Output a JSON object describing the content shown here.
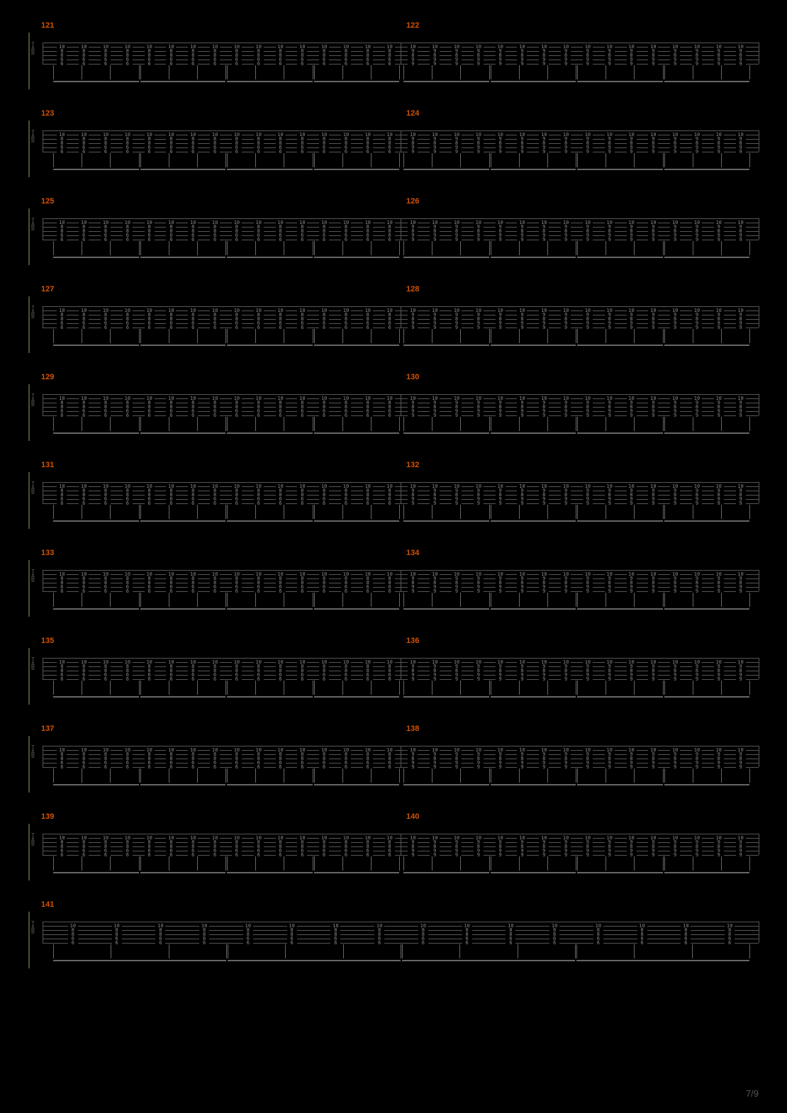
{
  "page_number": "7/9",
  "colors": {
    "background": "#000000",
    "measure_number": "#d35400",
    "staff_line": "#555555",
    "fret_text": "#888888",
    "beam": "#666666",
    "bracket": "#4a5028",
    "page_num": "#555555"
  },
  "tab_label": "TAB",
  "systems": [
    {
      "measures": [
        {
          "number": "121",
          "frets": [
            "10",
            "8",
            "8",
            "6",
            "6"
          ],
          "beats": 16
        },
        {
          "number": "122",
          "frets": [
            "10",
            "9",
            "8",
            "9",
            "9"
          ],
          "beats": 16
        }
      ]
    },
    {
      "measures": [
        {
          "number": "123",
          "frets": [
            "10",
            "8",
            "8",
            "6",
            "6"
          ],
          "beats": 16
        },
        {
          "number": "124",
          "frets": [
            "10",
            "9",
            "8",
            "9",
            "9"
          ],
          "beats": 16
        }
      ]
    },
    {
      "measures": [
        {
          "number": "125",
          "frets": [
            "10",
            "8",
            "8",
            "6",
            "6"
          ],
          "beats": 16
        },
        {
          "number": "126",
          "frets": [
            "10",
            "9",
            "8",
            "9",
            "9"
          ],
          "beats": 16
        }
      ]
    },
    {
      "measures": [
        {
          "number": "127",
          "frets": [
            "10",
            "8",
            "8",
            "6",
            "6"
          ],
          "beats": 16
        },
        {
          "number": "128",
          "frets": [
            "10",
            "9",
            "8",
            "9",
            "9"
          ],
          "beats": 16
        }
      ]
    },
    {
      "measures": [
        {
          "number": "129",
          "frets": [
            "10",
            "8",
            "8",
            "6",
            "6"
          ],
          "beats": 16
        },
        {
          "number": "130",
          "frets": [
            "10",
            "9",
            "8",
            "9",
            "9"
          ],
          "beats": 16
        }
      ]
    },
    {
      "measures": [
        {
          "number": "131",
          "frets": [
            "10",
            "8",
            "8",
            "6",
            "6"
          ],
          "beats": 16
        },
        {
          "number": "132",
          "frets": [
            "10",
            "9",
            "8",
            "9",
            "9"
          ],
          "beats": 16
        }
      ]
    },
    {
      "measures": [
        {
          "number": "133",
          "frets": [
            "10",
            "8",
            "8",
            "6",
            "6"
          ],
          "beats": 16
        },
        {
          "number": "134",
          "frets": [
            "10",
            "9",
            "8",
            "9",
            "9"
          ],
          "beats": 16
        }
      ]
    },
    {
      "measures": [
        {
          "number": "135",
          "frets": [
            "10",
            "8",
            "8",
            "6",
            "6"
          ],
          "beats": 16
        },
        {
          "number": "136",
          "frets": [
            "10",
            "9",
            "8",
            "9",
            "9"
          ],
          "beats": 16
        }
      ]
    },
    {
      "measures": [
        {
          "number": "137",
          "frets": [
            "10",
            "8",
            "8",
            "6",
            "6"
          ],
          "beats": 16
        },
        {
          "number": "138",
          "frets": [
            "10",
            "9",
            "8",
            "9",
            "9"
          ],
          "beats": 16
        }
      ]
    },
    {
      "measures": [
        {
          "number": "139",
          "frets": [
            "10",
            "8",
            "8",
            "6",
            "6"
          ],
          "beats": 16
        },
        {
          "number": "140",
          "frets": [
            "10",
            "9",
            "8",
            "9",
            "9"
          ],
          "beats": 16
        }
      ]
    },
    {
      "measures": [
        {
          "number": "141",
          "frets": [
            "10",
            "8",
            "8",
            "6",
            "6"
          ],
          "beats": 16,
          "fullwidth": true
        }
      ]
    }
  ]
}
